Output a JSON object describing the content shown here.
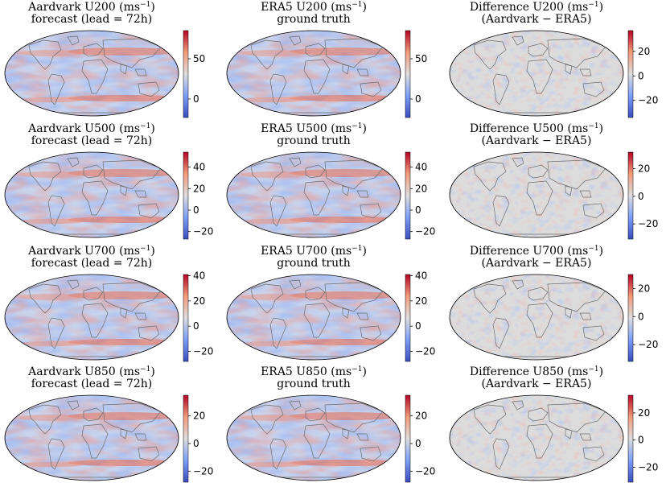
{
  "chart_data": [
    {
      "type": "heatmap",
      "row_variable": "U200",
      "title_line1": "Aardvark U200 (ms",
      "title_line1_sup": "−1",
      "title_line1_tail": ")",
      "title_line2": "forecast (lead = 72h)",
      "colorbar_range": [
        -23,
        85
      ],
      "colorbar_ticks": [
        {
          "value": 0,
          "label": "0"
        },
        {
          "value": 50,
          "label": "50"
        }
      ],
      "cmap": "coolwarm",
      "map_projection": "Robinson"
    },
    {
      "type": "heatmap",
      "row_variable": "U200",
      "title_line1": "ERA5 U200 (ms",
      "title_line1_sup": "−1",
      "title_line1_tail": ")",
      "title_line2": "ground truth",
      "colorbar_range": [
        -23,
        85
      ],
      "colorbar_ticks": [
        {
          "value": 0,
          "label": "0"
        },
        {
          "value": 50,
          "label": "50"
        }
      ],
      "cmap": "coolwarm",
      "map_projection": "Robinson"
    },
    {
      "type": "heatmap",
      "row_variable": "U200",
      "title_line1": "Difference U200 (ms",
      "title_line1_sup": "−1",
      "title_line1_tail": ")",
      "title_line2": "(Aardvark − ERA5)",
      "colorbar_range": [
        -34,
        37
      ],
      "colorbar_ticks": [
        {
          "value": 20,
          "label": "20"
        },
        {
          "value": 0,
          "label": "0"
        },
        {
          "value": -20,
          "label": "−20"
        }
      ],
      "cmap": "coolwarm",
      "map_projection": "Robinson"
    },
    {
      "type": "heatmap",
      "row_variable": "U500",
      "title_line1": "Aardvark U500 (ms",
      "title_line1_sup": "−1",
      "title_line1_tail": ")",
      "title_line2": "forecast (lead = 72h)",
      "colorbar_range": [
        -27,
        54
      ],
      "colorbar_ticks": [
        {
          "value": 40,
          "label": "40"
        },
        {
          "value": 20,
          "label": "20"
        },
        {
          "value": 0,
          "label": "0"
        },
        {
          "value": -20,
          "label": "−20"
        }
      ],
      "cmap": "coolwarm",
      "map_projection": "Robinson"
    },
    {
      "type": "heatmap",
      "row_variable": "U500",
      "title_line1": "ERA5 U500 (ms",
      "title_line1_sup": "−1",
      "title_line1_tail": ")",
      "title_line2": "ground truth",
      "colorbar_range": [
        -27,
        54
      ],
      "colorbar_ticks": [
        {
          "value": 40,
          "label": "40"
        },
        {
          "value": 20,
          "label": "20"
        },
        {
          "value": 0,
          "label": "0"
        },
        {
          "value": -20,
          "label": "−20"
        }
      ],
      "cmap": "coolwarm",
      "map_projection": "Robinson"
    },
    {
      "type": "heatmap",
      "row_variable": "U500",
      "title_line1": "Difference U500 (ms",
      "title_line1_sup": "−1",
      "title_line1_tail": ")",
      "title_line2": "(Aardvark − ERA5)",
      "colorbar_range": [
        -31,
        32
      ],
      "colorbar_ticks": [
        {
          "value": 20,
          "label": "20"
        },
        {
          "value": 0,
          "label": "0"
        },
        {
          "value": -20,
          "label": "−20"
        }
      ],
      "cmap": "coolwarm",
      "map_projection": "Robinson"
    },
    {
      "type": "heatmap",
      "row_variable": "U700",
      "title_line1": "Aardvark U700 (ms",
      "title_line1_sup": "−1",
      "title_line1_tail": ")",
      "title_line2": "forecast (lead = 72h)",
      "colorbar_range": [
        -28,
        41
      ],
      "colorbar_ticks": [
        {
          "value": 40,
          "label": "40"
        },
        {
          "value": 20,
          "label": "20"
        },
        {
          "value": 0,
          "label": "0"
        },
        {
          "value": -20,
          "label": "−20"
        }
      ],
      "cmap": "coolwarm",
      "map_projection": "Robinson"
    },
    {
      "type": "heatmap",
      "row_variable": "U700",
      "title_line1": "ERA5 U700 (ms",
      "title_line1_sup": "−1",
      "title_line1_tail": ")",
      "title_line2": "ground truth",
      "colorbar_range": [
        -28,
        41
      ],
      "colorbar_ticks": [
        {
          "value": 40,
          "label": "40"
        },
        {
          "value": 20,
          "label": "20"
        },
        {
          "value": 0,
          "label": "0"
        },
        {
          "value": -20,
          "label": "−20"
        }
      ],
      "cmap": "coolwarm",
      "map_projection": "Robinson"
    },
    {
      "type": "heatmap",
      "row_variable": "U700",
      "title_line1": "Difference U700 (ms",
      "title_line1_sup": "−1",
      "title_line1_tail": ")",
      "title_line2": "(Aardvark − ERA5)",
      "colorbar_range": [
        -32,
        30
      ],
      "colorbar_ticks": [
        {
          "value": 20,
          "label": "20"
        },
        {
          "value": 0,
          "label": "0"
        },
        {
          "value": -20,
          "label": "−20"
        }
      ],
      "cmap": "coolwarm",
      "map_projection": "Robinson"
    },
    {
      "type": "heatmap",
      "row_variable": "U850",
      "title_line1": "Aardvark U850 (ms",
      "title_line1_sup": "−1",
      "title_line1_tail": ")",
      "title_line2": "forecast (lead = 72h)",
      "colorbar_range": [
        -28,
        35
      ],
      "colorbar_ticks": [
        {
          "value": 20,
          "label": "20"
        },
        {
          "value": 0,
          "label": "0"
        },
        {
          "value": -20,
          "label": "−20"
        }
      ],
      "cmap": "coolwarm",
      "map_projection": "Robinson"
    },
    {
      "type": "heatmap",
      "row_variable": "U850",
      "title_line1": "ERA5 U850 (ms",
      "title_line1_sup": "−1",
      "title_line1_tail": ")",
      "title_line2": "ground truth",
      "colorbar_range": [
        -28,
        35
      ],
      "colorbar_ticks": [
        {
          "value": 20,
          "label": "20"
        },
        {
          "value": 0,
          "label": "0"
        },
        {
          "value": -20,
          "label": "−20"
        }
      ],
      "cmap": "coolwarm",
      "map_projection": "Robinson"
    },
    {
      "type": "heatmap",
      "row_variable": "U850",
      "title_line1": "Difference U850 (ms",
      "title_line1_sup": "−1",
      "title_line1_tail": ")",
      "title_line2": "(Aardvark − ERA5)",
      "colorbar_range": [
        -31,
        33
      ],
      "colorbar_ticks": [
        {
          "value": 20,
          "label": "20"
        },
        {
          "value": 0,
          "label": "0"
        },
        {
          "value": -20,
          "label": "−20"
        }
      ],
      "cmap": "coolwarm",
      "map_projection": "Robinson"
    }
  ]
}
